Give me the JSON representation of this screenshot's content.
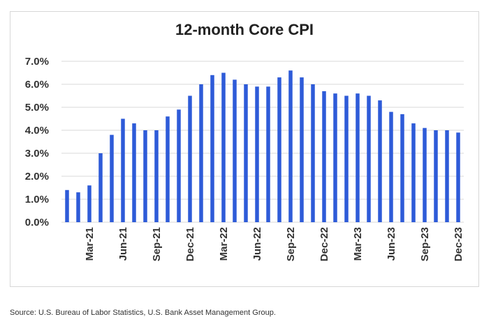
{
  "chart_data": {
    "type": "bar",
    "title": "12-month Core CPI",
    "xlabel": "",
    "ylabel": "",
    "ylim": [
      0,
      7
    ],
    "y_ticks": [
      "0.0%",
      "1.0%",
      "2.0%",
      "3.0%",
      "4.0%",
      "5.0%",
      "6.0%",
      "7.0%"
    ],
    "grid": true,
    "bar_color": "#2e5bd8",
    "categories": [
      "Jan-21",
      "Feb-21",
      "Mar-21",
      "Apr-21",
      "May-21",
      "Jun-21",
      "Jul-21",
      "Aug-21",
      "Sep-21",
      "Oct-21",
      "Nov-21",
      "Dec-21",
      "Jan-22",
      "Feb-22",
      "Mar-22",
      "Apr-22",
      "May-22",
      "Jun-22",
      "Jul-22",
      "Aug-22",
      "Sep-22",
      "Oct-22",
      "Nov-22",
      "Dec-22",
      "Jan-23",
      "Feb-23",
      "Mar-23",
      "Apr-23",
      "May-23",
      "Jun-23",
      "Jul-23",
      "Aug-23",
      "Sep-23",
      "Oct-23",
      "Nov-23",
      "Dec-23"
    ],
    "visible_tick_labels": [
      "Mar-21",
      "Jun-21",
      "Sep-21",
      "Dec-21",
      "Mar-22",
      "Jun-22",
      "Sep-22",
      "Dec-22",
      "Mar-23",
      "Jun-23",
      "Sep-23",
      "Dec-23"
    ],
    "values": [
      1.4,
      1.3,
      1.6,
      3.0,
      3.8,
      4.5,
      4.3,
      4.0,
      4.0,
      4.6,
      4.9,
      5.5,
      6.0,
      6.4,
      6.5,
      6.2,
      6.0,
      5.9,
      5.9,
      6.3,
      6.6,
      6.3,
      6.0,
      5.7,
      5.6,
      5.5,
      5.6,
      5.5,
      5.3,
      4.8,
      4.7,
      4.3,
      4.1,
      4.0,
      4.0,
      3.9
    ]
  },
  "footer": {
    "source": "Source: U.S. Bureau of Labor Statistics, U.S. Bank Asset Management Group."
  }
}
